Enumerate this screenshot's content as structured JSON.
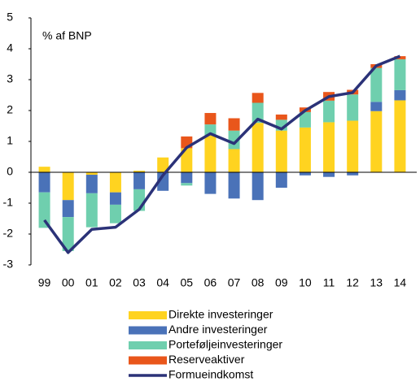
{
  "chart_data": {
    "type": "bar",
    "title": "% af BNP",
    "categories": [
      "99",
      "00",
      "01",
      "02",
      "03",
      "04",
      "05",
      "06",
      "07",
      "08",
      "09",
      "10",
      "11",
      "12",
      "13",
      "14"
    ],
    "series": [
      {
        "name": "Direkte investeringer",
        "color": "#ffd320",
        "values": [
          0.18,
          -0.9,
          -0.08,
          -0.65,
          0.05,
          0.48,
          0.78,
          1.2,
          0.75,
          1.6,
          1.35,
          1.45,
          1.62,
          1.67,
          1.98,
          2.33
        ]
      },
      {
        "name": "Andre investeringer",
        "color": "#4a72b8",
        "values": [
          -0.65,
          -0.55,
          -0.6,
          -0.4,
          -0.55,
          -0.6,
          -0.35,
          -0.7,
          -0.85,
          -0.9,
          -0.5,
          -0.1,
          -0.15,
          -0.1,
          0.3,
          0.33
        ]
      },
      {
        "name": "Porteføljeinvesteringer",
        "color": "#6fcfae",
        "values": [
          -1.15,
          -1.1,
          -1.1,
          -0.6,
          -0.7,
          0,
          -0.08,
          0.35,
          0.6,
          0.65,
          0.35,
          0.5,
          0.7,
          0.85,
          1.1,
          1.0
        ]
      },
      {
        "name": "Reserveaktiver",
        "color": "#e9561b",
        "values": [
          0,
          0,
          0,
          0,
          0,
          0,
          0.38,
          0.37,
          0.4,
          0.32,
          0.17,
          0.15,
          0.28,
          0.15,
          0.12,
          0.1
        ]
      },
      {
        "name": "Formueindkomst",
        "color": "#2b3278",
        "type": "line",
        "values": [
          -1.55,
          -2.6,
          -1.85,
          -1.78,
          -1.2,
          -0.1,
          0.8,
          1.25,
          0.93,
          1.72,
          1.4,
          2.0,
          2.45,
          2.58,
          3.45,
          3.76
        ]
      }
    ],
    "ylim": [
      -3,
      5
    ],
    "yticks": [
      -3,
      -2,
      -1,
      0,
      1,
      2,
      3,
      4,
      5
    ],
    "grid": false
  }
}
